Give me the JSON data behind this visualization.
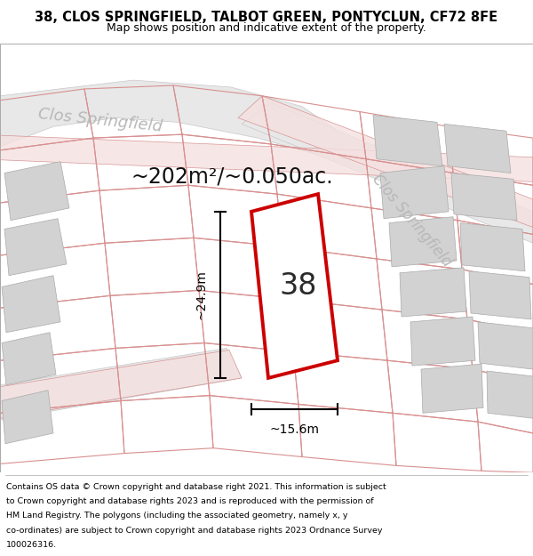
{
  "title_line1": "38, CLOS SPRINGFIELD, TALBOT GREEN, PONTYCLUN, CF72 8FE",
  "title_line2": "Map shows position and indicative extent of the property.",
  "area_text": "~202m²/~0.050ac.",
  "dim_width": "~15.6m",
  "dim_height": "~24.9m",
  "property_number": "38",
  "street_name_1": "Clos Springfield",
  "street_name_2": "Clos Springfield",
  "footer_lines": [
    "Contains OS data © Crown copyright and database right 2021. This information is subject",
    "to Crown copyright and database rights 2023 and is reproduced with the permission of",
    "HM Land Registry. The polygons (including the associated geometry, namely x, y",
    "co-ordinates) are subject to Crown copyright and database rights 2023 Ordnance Survey",
    "100026316."
  ],
  "map_bg": "#ffffff",
  "building_fill": "#d2d2d2",
  "building_ec": "#aaaaaa",
  "property_outline_color": "#cc0000",
  "dim_line_color": "#000000",
  "pink_road_fill": "#f5e0e0",
  "pink_road_ec": "#d08080",
  "plot_ec": "#d89090",
  "street_text_color": "#b8b8b8",
  "title_color": "#000000",
  "footer_color": "#000000",
  "separator_color": "#aaaaaa"
}
